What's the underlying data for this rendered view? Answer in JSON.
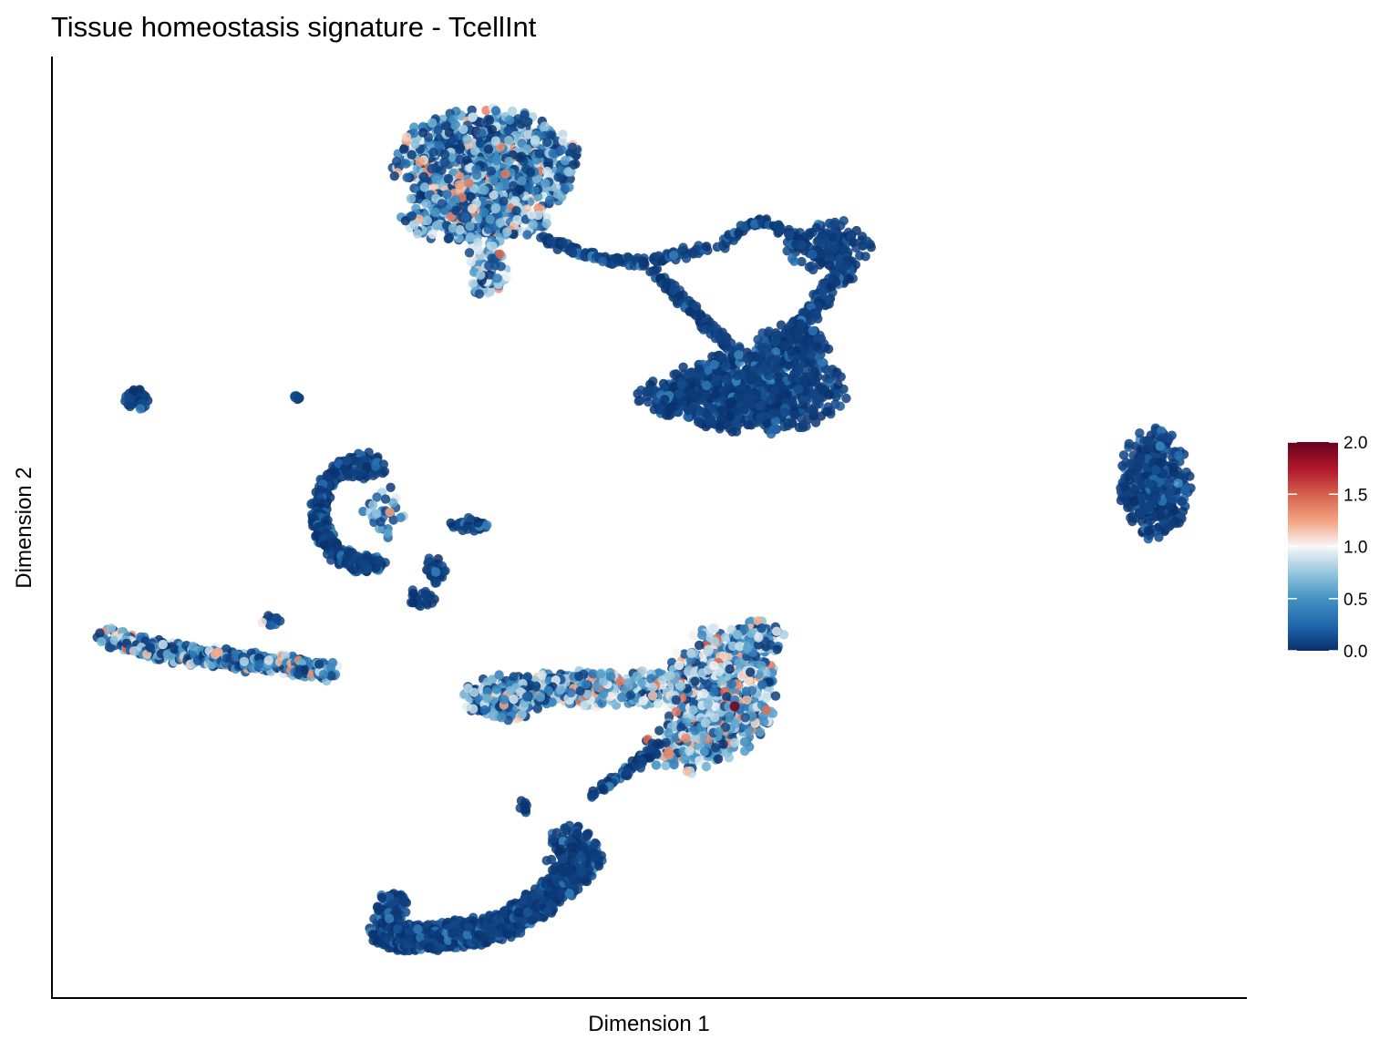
{
  "chart_data": {
    "type": "scatter",
    "title": "Tissue homeostasis signature - TcellInt",
    "xlabel": "Dimension 1",
    "ylabel": "Dimension 2",
    "x_ticks_shown": false,
    "y_ticks_shown": false,
    "grid": false,
    "colorbar": {
      "placement": "right",
      "range": [
        0.0,
        2.0
      ],
      "ticks": [
        "2.0",
        "1.5",
        "1.0",
        "0.5",
        "0.0"
      ],
      "palette": "RdBu (reversed)",
      "colors": [
        "#08306b",
        "#2166ac",
        "#4393c3",
        "#92c5de",
        "#f7f7f7",
        "#f4a582",
        "#d6604d",
        "#b2182b",
        "#67001f"
      ]
    },
    "clusters": [
      {
        "name": "top",
        "approx_center": [
          -3.5,
          7.5
        ],
        "dominant_score": "0.0-0.8, a few 1.0-1.3"
      },
      {
        "name": "bridge-right-loop",
        "approx_center": [
          2.5,
          4.5
        ],
        "dominant_score": "0.0-0.3"
      },
      {
        "name": "right-middle",
        "approx_center": [
          2.2,
          1.8
        ],
        "dominant_score": "0.0-0.2"
      },
      {
        "name": "far-right",
        "approx_center": [
          12.0,
          0.0
        ],
        "dominant_score": "0.0-0.2"
      },
      {
        "name": "small-far-left",
        "approx_center": [
          -12.0,
          2.0
        ],
        "dominant_score": "0.0-0.4"
      },
      {
        "name": "tiny-left",
        "approx_center": [
          -9.5,
          2.0
        ],
        "dominant_score": "0.0"
      },
      {
        "name": "crescent-left",
        "approx_center": [
          -7.5,
          -1.0
        ],
        "dominant_score": "0.0-0.7"
      },
      {
        "name": "small-center-fragments",
        "approx_center": [
          -5.0,
          -2.0
        ],
        "dominant_score": "0.0-0.3"
      },
      {
        "name": "streak-left",
        "approx_center": [
          -10.0,
          -4.5
        ],
        "dominant_score": "0.1-1.0"
      },
      {
        "name": "center-lower",
        "approx_center": [
          1.0,
          -5.5
        ],
        "dominant_score": "0.0-1.2, max 2.0"
      },
      {
        "name": "bottom-arc",
        "approx_center": [
          -3.5,
          -11.0
        ],
        "dominant_score": "0.0-0.4"
      }
    ]
  }
}
